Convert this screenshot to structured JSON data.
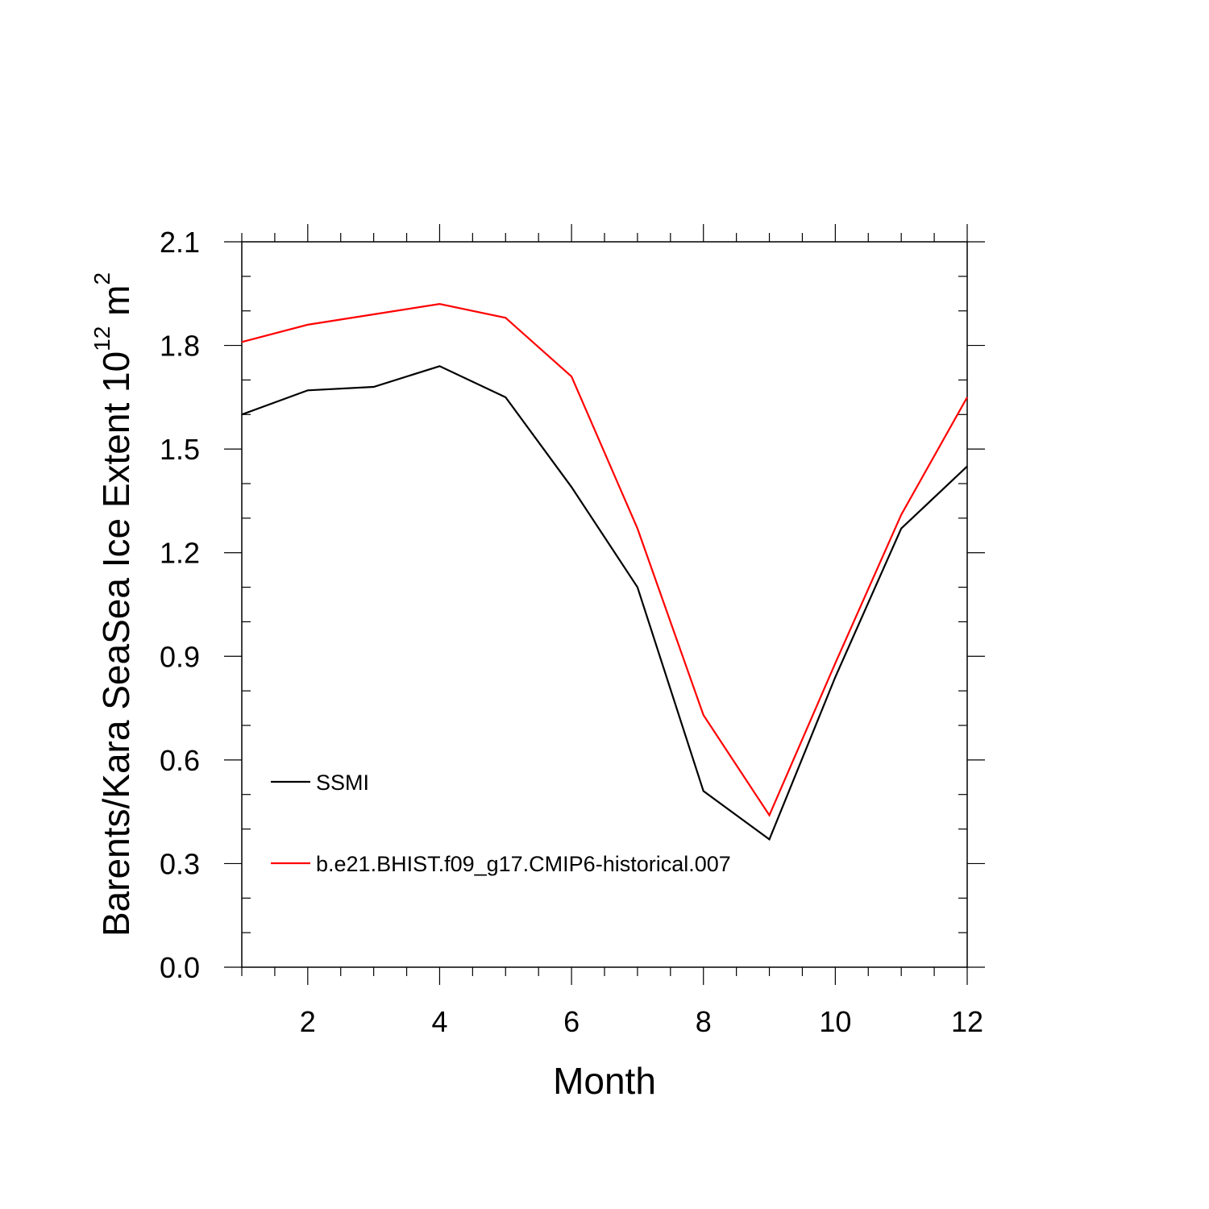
{
  "chart_data": {
    "type": "line",
    "xlabel": "Month",
    "ylabel_main": "Barents/Kara SeaSea Ice Extent 10",
    "ylabel_exp": "12",
    "ylabel_unit": " m",
    "ylabel_unit_exp": "2",
    "xlim": [
      1,
      12
    ],
    "ylim": [
      0.0,
      2.1
    ],
    "x_ticks": [
      2,
      4,
      6,
      8,
      10,
      12
    ],
    "x_tick_labels": [
      "2",
      "4",
      "6",
      "8",
      "10",
      "12"
    ],
    "y_ticks": [
      0.0,
      0.3,
      0.6,
      0.9,
      1.2,
      1.5,
      1.8,
      2.1
    ],
    "y_tick_labels": [
      "0.0",
      "0.3",
      "0.6",
      "0.9",
      "1.2",
      "1.5",
      "1.8",
      "2.1"
    ],
    "grid": false,
    "legend_position": "bottom-left",
    "x": [
      1,
      2,
      3,
      4,
      5,
      6,
      7,
      8,
      9,
      10,
      11,
      12
    ],
    "series": [
      {
        "name": "SSMI",
        "color": "#000000",
        "values": [
          1.6,
          1.67,
          1.68,
          1.74,
          1.65,
          1.39,
          1.1,
          0.51,
          0.37,
          0.84,
          1.27,
          1.45
        ]
      },
      {
        "name": "b.e21.BHIST.f09_g17.CMIP6-historical.007",
        "color": "#ff0000",
        "values": [
          1.81,
          1.86,
          1.89,
          1.92,
          1.88,
          1.71,
          1.27,
          0.73,
          0.44,
          0.88,
          1.31,
          1.65
        ]
      }
    ]
  }
}
